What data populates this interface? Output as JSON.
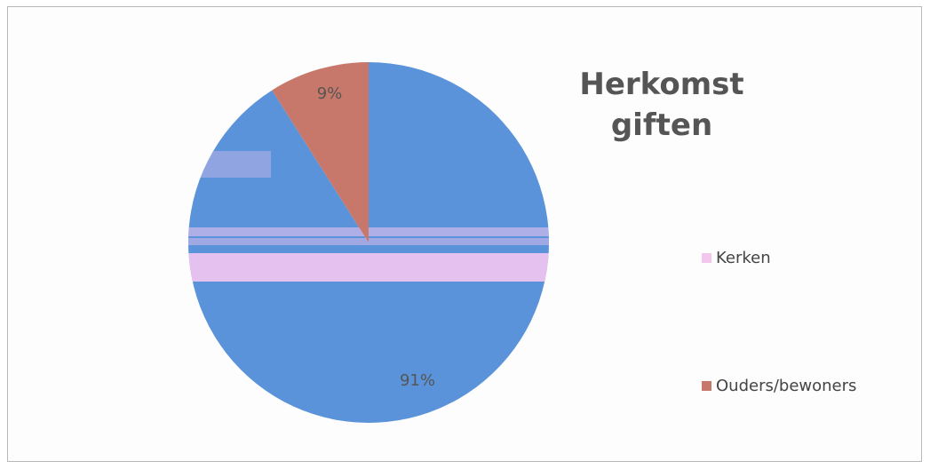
{
  "chart_data": {
    "type": "pie",
    "title_lines": [
      "Herkomst",
      "giften"
    ],
    "categories": [
      "Kerken",
      "Ouders/bewoners"
    ],
    "values": [
      91,
      9
    ],
    "data_labels": [
      "91%",
      "9%"
    ],
    "colors": [
      "#5b93da",
      "#c8786a"
    ],
    "legend_colors": [
      "#f4c6ef",
      "#c8786a"
    ],
    "band_color": "#f3c6f0",
    "legend": "right"
  }
}
